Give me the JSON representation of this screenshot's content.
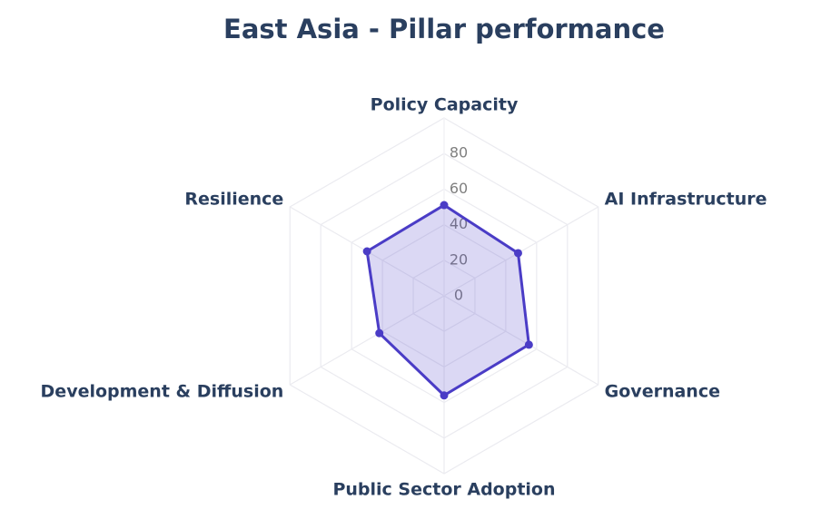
{
  "chart_data": {
    "type": "radar",
    "title": "East Asia - Pillar performance",
    "categories": [
      "Policy Capacity",
      "AI Infrastructure",
      "Governance",
      "Public Sector Adoption",
      "Development & Diffusion",
      "Resilience"
    ],
    "values": [
      51,
      48,
      55,
      56,
      42,
      50
    ],
    "color": "#4a3cc6",
    "rlim": [
      0,
      100
    ],
    "rticks": [
      0,
      20,
      40,
      60,
      80
    ],
    "grid": true
  }
}
